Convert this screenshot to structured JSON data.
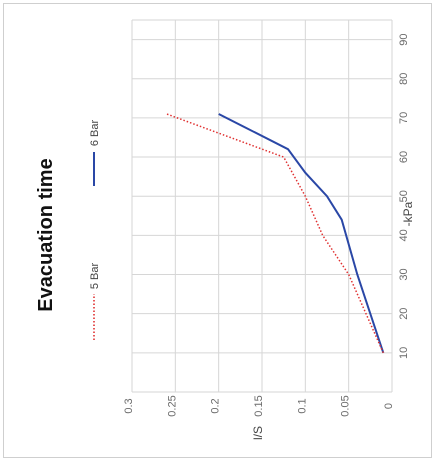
{
  "chart_data": {
    "type": "line",
    "orientation": "rotated-90-clockwise",
    "title": "Evacuation time",
    "xlabel": "-kPa",
    "ylabel": "l/S",
    "xlim": [
      0,
      95
    ],
    "ylim": [
      0,
      0.3
    ],
    "x_ticks": [
      10,
      20,
      30,
      40,
      50,
      60,
      70,
      80,
      90
    ],
    "y_ticks": [
      0,
      0.05,
      0.1,
      0.15,
      0.2,
      0.25,
      0.3
    ],
    "y_tick_labels": [
      "0",
      "0.05",
      "0.1",
      "0.15",
      "0.2",
      "0.25",
      "0.3"
    ],
    "grid": true,
    "legend_position": "left",
    "series": [
      {
        "name": "6 Bar",
        "color": "#2a47a6",
        "style": "solid",
        "x": [
          10,
          20,
          30,
          44,
          50,
          56,
          62,
          71
        ],
        "y": [
          0.01,
          0.025,
          0.04,
          0.058,
          0.075,
          0.1,
          0.12,
          0.2
        ]
      },
      {
        "name": "5 Bar",
        "color": "#e03030",
        "style": "dotted",
        "x": [
          10,
          20,
          30,
          40,
          50,
          60,
          71
        ],
        "y": [
          0.01,
          0.03,
          0.05,
          0.08,
          0.1,
          0.125,
          0.26
        ]
      }
    ]
  }
}
